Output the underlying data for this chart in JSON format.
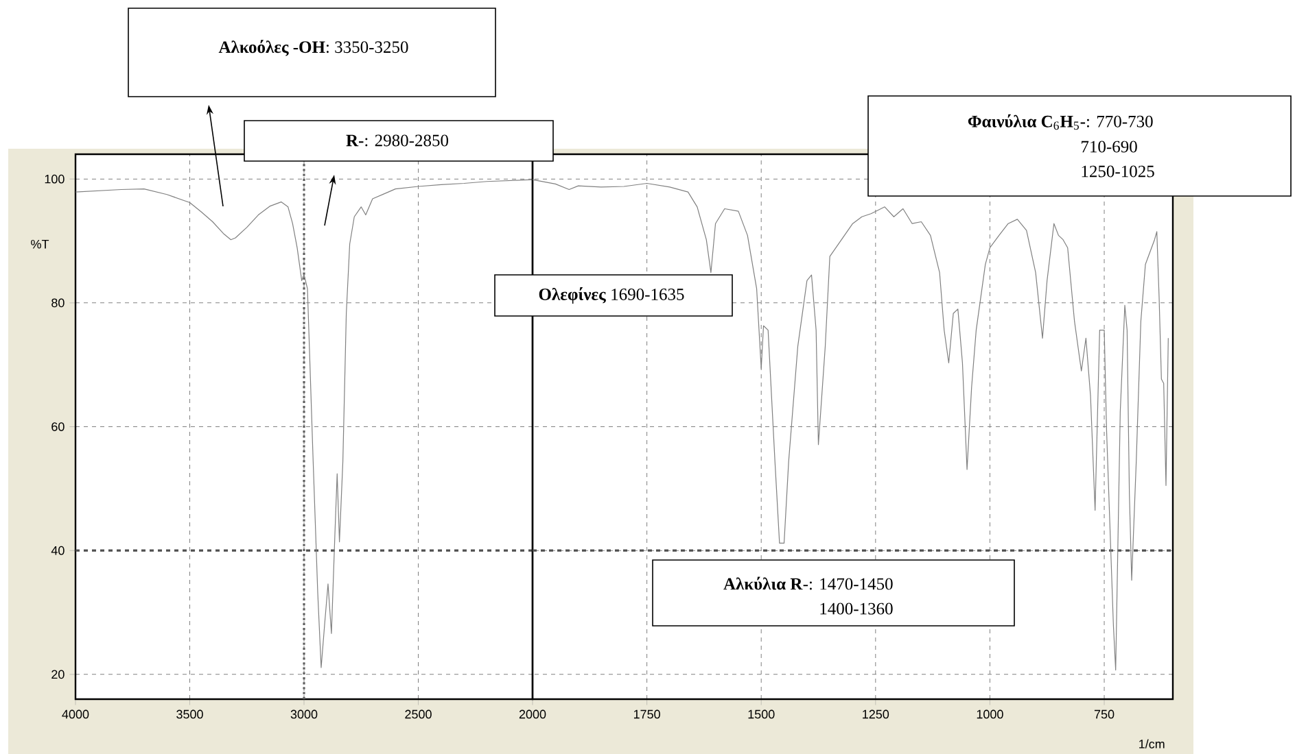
{
  "chart_data": [
    {
      "type": "line",
      "ylabel": "%T",
      "x": [
        4000,
        3800,
        3700,
        3600,
        3500,
        3450,
        3400,
        3350,
        3320,
        3300,
        3250,
        3200,
        3150,
        3100,
        3070,
        3050,
        3030,
        3010,
        3000,
        2985,
        2960,
        2940,
        2925,
        2910,
        2895,
        2880,
        2865,
        2855,
        2845,
        2830,
        2815,
        2800,
        2780,
        2750,
        2730,
        2700,
        2650,
        2600,
        2500,
        2400,
        2300,
        2200,
        2000
      ],
      "values": [
        97.9,
        98.3,
        98.4,
        97.5,
        96.2,
        94.7,
        93.1,
        91.1,
        90.2,
        90.5,
        92.2,
        94.2,
        95.6,
        96.3,
        95.5,
        92.8,
        88.9,
        83.6,
        84.6,
        82.3,
        54.4,
        33.2,
        21.1,
        28,
        34.6,
        26.6,
        42.5,
        52.4,
        41.4,
        54.4,
        78.3,
        89.5,
        93.9,
        95.5,
        94.2,
        96.8,
        97.6,
        98.4,
        98.8,
        99.1,
        99.3,
        99.6,
        99.9
      ],
      "color": "#808080",
      "xlim": [
        4000,
        2000
      ],
      "ylim": [
        16,
        104
      ],
      "xticks": [
        4000,
        3500,
        3000,
        2500
      ],
      "yticks": [
        20,
        40,
        60,
        80,
        100
      ],
      "grid": true,
      "ref_lines": [
        {
          "axis": "x",
          "value": 3000,
          "color": "#606060",
          "line_style": "dotted"
        },
        {
          "axis": "y",
          "value": 40,
          "color": "#505050",
          "line_style": "dashed"
        }
      ],
      "annotations": [
        "**Αλκοόλες -OH**: 3350-3250",
        "**R-**: 2980-2850"
      ]
    },
    {
      "type": "line",
      "xlabel": "1/cm",
      "tick_labels": "x",
      "x": [
        2000,
        1950,
        1920,
        1900,
        1850,
        1800,
        1750,
        1700,
        1660,
        1640,
        1620,
        1610,
        1600,
        1580,
        1550,
        1530,
        1510,
        1500,
        1495,
        1485,
        1470,
        1460,
        1450,
        1440,
        1420,
        1400,
        1390,
        1380,
        1375,
        1360,
        1350,
        1300,
        1280,
        1260,
        1230,
        1210,
        1190,
        1170,
        1150,
        1130,
        1110,
        1100,
        1090,
        1080,
        1070,
        1060,
        1050,
        1040,
        1030,
        1010,
        1000,
        980,
        960,
        940,
        920,
        900,
        885,
        875,
        860,
        850,
        840,
        830,
        815,
        800,
        790,
        780,
        770,
        760,
        750,
        745,
        740,
        730,
        725,
        715,
        705,
        700,
        695,
        690,
        680,
        670,
        660,
        650,
        640,
        635,
        630,
        625,
        620,
        615,
        610
      ],
      "values": [
        99.9,
        99.2,
        98.3,
        98.9,
        98.7,
        98.8,
        99.3,
        98.7,
        97.9,
        95.5,
        90.2,
        84.9,
        92.8,
        95.2,
        94.8,
        90.9,
        82.3,
        69.4,
        76.3,
        75.6,
        54.4,
        41.2,
        41.2,
        54.4,
        73,
        83.6,
        84.5,
        75.6,
        57.1,
        73,
        87.5,
        92.8,
        93.9,
        94.4,
        95.5,
        93.9,
        95.2,
        92.8,
        93.1,
        90.9,
        84.9,
        75.6,
        70.3,
        78.3,
        79,
        70.3,
        53.1,
        66.4,
        75.6,
        86.2,
        88.9,
        90.9,
        92.8,
        93.5,
        91.7,
        84.9,
        74.3,
        83.6,
        92.8,
        90.9,
        90.2,
        88.9,
        77,
        69,
        74.3,
        65,
        46.5,
        75.6,
        75.6,
        59.7,
        49.1,
        28,
        20.7,
        62.4,
        79.6,
        75.6,
        49.1,
        35.2,
        54.4,
        77,
        86.2,
        88.2,
        90.2,
        91.5,
        80.9,
        67.7,
        67,
        50.5,
        74.3
      ],
      "color": "#808080",
      "xlim": [
        2000,
        600
      ],
      "ylim": [
        16,
        104
      ],
      "xticks": [
        2000,
        1750,
        1500,
        1250,
        1000,
        750
      ],
      "yticks": [
        20,
        40,
        60,
        80,
        100
      ],
      "grid": true,
      "ref_lines": [
        {
          "axis": "y",
          "value": 40,
          "color": "#505050",
          "line_style": "dashed"
        }
      ],
      "annotations": [
        "**Ολεφίνες** 1690-1635",
        "**Αλκύλια R**-: 1470-1450",
        "1400-1360",
        "**Φαινύλια C**$_{6}$**H**$_{5}$**-**:  770-730",
        "710-690",
        "1250-1025"
      ]
    }
  ]
}
